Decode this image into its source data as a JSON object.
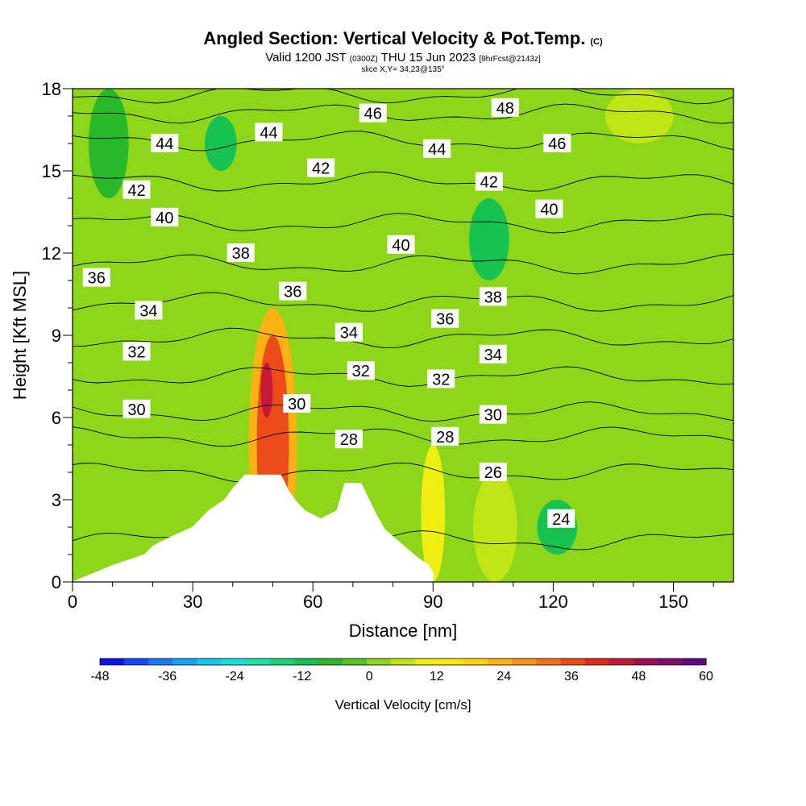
{
  "title": {
    "main": "Angled Section: Vertical Velocity & Pot.Temp.",
    "main_note": "(C)",
    "valid_prefix": "Valid 1200 JST",
    "valid_z": "(0300Z)",
    "valid_date": "THU 15 Jun 2023",
    "valid_fcst": "[9hrFcst@2143z]",
    "slice": "slice X,Y= 34,23@135°"
  },
  "chart_data": {
    "type": "heatmap",
    "xlabel": "Distance [nm]",
    "ylabel": "Height [Kft MSL]",
    "xlim": [
      0,
      165
    ],
    "ylim": [
      0,
      18
    ],
    "x_ticks": [
      0,
      30,
      60,
      90,
      120,
      150
    ],
    "y_ticks": [
      0,
      3,
      6,
      9,
      12,
      15,
      18
    ],
    "colorbar": {
      "label": "Vertical Velocity [cm/s]",
      "ticks": [
        -48,
        -36,
        -24,
        -12,
        0,
        12,
        24,
        36,
        48,
        60
      ],
      "range": [
        -48,
        60
      ],
      "colors": [
        "#1010f0",
        "#1648f6",
        "#1a78fa",
        "#14a4f6",
        "#10c8f0",
        "#14e2d8",
        "#1ee0a8",
        "#1ad27a",
        "#18c250",
        "#28b82a",
        "#54c41e",
        "#8ed61a",
        "#c0e414",
        "#eeee10",
        "#fde80e",
        "#fdd010",
        "#fcb212",
        "#f89016",
        "#f2701a",
        "#ec4c1a",
        "#e22818",
        "#c81838",
        "#a01050",
        "#801068",
        "#600a80"
      ]
    },
    "velocity_cells": [
      {
        "x": [
          44,
          56
        ],
        "z": [
          0,
          10
        ],
        "value": 24
      },
      {
        "x": [
          46,
          54
        ],
        "z": [
          1,
          9
        ],
        "value": 36
      },
      {
        "x": [
          47,
          50
        ],
        "z": [
          6,
          8
        ],
        "value": 48
      },
      {
        "x": [
          87,
          93
        ],
        "z": [
          0,
          5
        ],
        "value": 12
      },
      {
        "x": [
          100,
          111
        ],
        "z": [
          0,
          4
        ],
        "value": 6
      },
      {
        "x": [
          99,
          109
        ],
        "z": [
          11,
          14
        ],
        "value": -12
      },
      {
        "x": [
          116,
          126
        ],
        "z": [
          1,
          3
        ],
        "value": -10
      },
      {
        "x": [
          33,
          41
        ],
        "z": [
          15,
          17
        ],
        "value": -10
      },
      {
        "x": [
          133,
          150
        ],
        "z": [
          16,
          18
        ],
        "value": 8
      },
      {
        "x": [
          4,
          14
        ],
        "z": [
          14,
          18
        ],
        "value": -8
      }
    ],
    "theta_contours": [
      {
        "value": 24,
        "z": 1.5
      },
      {
        "value": 26,
        "z": 4.0
      },
      {
        "value": 28,
        "z": 5.3
      },
      {
        "value": 30,
        "z": 6.2
      },
      {
        "value": 32,
        "z": 7.5
      },
      {
        "value": 34,
        "z": 8.9
      },
      {
        "value": 36,
        "z": 10.2
      },
      {
        "value": 38,
        "z": 11.6
      },
      {
        "value": 40,
        "z": 13.1
      },
      {
        "value": 42,
        "z": 14.6
      },
      {
        "value": 44,
        "z": 16.1
      },
      {
        "value": 46,
        "z": 17.1
      },
      {
        "value": 48,
        "z": 17.8
      }
    ],
    "contour_labels": [
      {
        "text": "44",
        "x": 23,
        "z": 16.0
      },
      {
        "text": "44",
        "x": 49,
        "z": 16.4
      },
      {
        "text": "46",
        "x": 75,
        "z": 17.1
      },
      {
        "text": "48",
        "x": 108,
        "z": 17.3
      },
      {
        "text": "44",
        "x": 91,
        "z": 15.8
      },
      {
        "text": "46",
        "x": 121,
        "z": 16.0
      },
      {
        "text": "42",
        "x": 16,
        "z": 14.3
      },
      {
        "text": "42",
        "x": 62,
        "z": 15.1
      },
      {
        "text": "42",
        "x": 104,
        "z": 14.6
      },
      {
        "text": "40",
        "x": 23,
        "z": 13.3
      },
      {
        "text": "40",
        "x": 82,
        "z": 12.3
      },
      {
        "text": "40",
        "x": 119,
        "z": 13.6
      },
      {
        "text": "38",
        "x": 42,
        "z": 12.0
      },
      {
        "text": "38",
        "x": 105,
        "z": 10.4
      },
      {
        "text": "36",
        "x": 6,
        "z": 11.1
      },
      {
        "text": "36",
        "x": 55,
        "z": 10.6
      },
      {
        "text": "36",
        "x": 93,
        "z": 9.6
      },
      {
        "text": "34",
        "x": 19,
        "z": 9.9
      },
      {
        "text": "34",
        "x": 69,
        "z": 9.1
      },
      {
        "text": "34",
        "x": 105,
        "z": 8.3
      },
      {
        "text": "32",
        "x": 16,
        "z": 8.4
      },
      {
        "text": "32",
        "x": 72,
        "z": 7.7
      },
      {
        "text": "32",
        "x": 92,
        "z": 7.4
      },
      {
        "text": "30",
        "x": 16,
        "z": 6.3
      },
      {
        "text": "30",
        "x": 56,
        "z": 6.5
      },
      {
        "text": "30",
        "x": 105,
        "z": 6.1
      },
      {
        "text": "28",
        "x": 69,
        "z": 5.2
      },
      {
        "text": "28",
        "x": 93,
        "z": 5.3
      },
      {
        "text": "26",
        "x": 105,
        "z": 4.0
      },
      {
        "text": "24",
        "x": 122,
        "z": 2.3
      }
    ],
    "terrain": [
      [
        10,
        0.6
      ],
      [
        18,
        1.0
      ],
      [
        20,
        1.3
      ],
      [
        24,
        1.6
      ],
      [
        30,
        2.0
      ],
      [
        34,
        2.6
      ],
      [
        38,
        3.0
      ],
      [
        40,
        3.4
      ],
      [
        43,
        3.9
      ],
      [
        52,
        3.9
      ],
      [
        54,
        3.3
      ],
      [
        56,
        2.9
      ],
      [
        58,
        2.6
      ],
      [
        62,
        2.3
      ],
      [
        66,
        2.6
      ],
      [
        68,
        3.6
      ],
      [
        72,
        3.6
      ],
      [
        74,
        3.0
      ],
      [
        76,
        2.4
      ],
      [
        78,
        1.9
      ],
      [
        82,
        1.4
      ],
      [
        86,
        0.9
      ],
      [
        89,
        0.6
      ],
      [
        90,
        0.3
      ]
    ]
  }
}
